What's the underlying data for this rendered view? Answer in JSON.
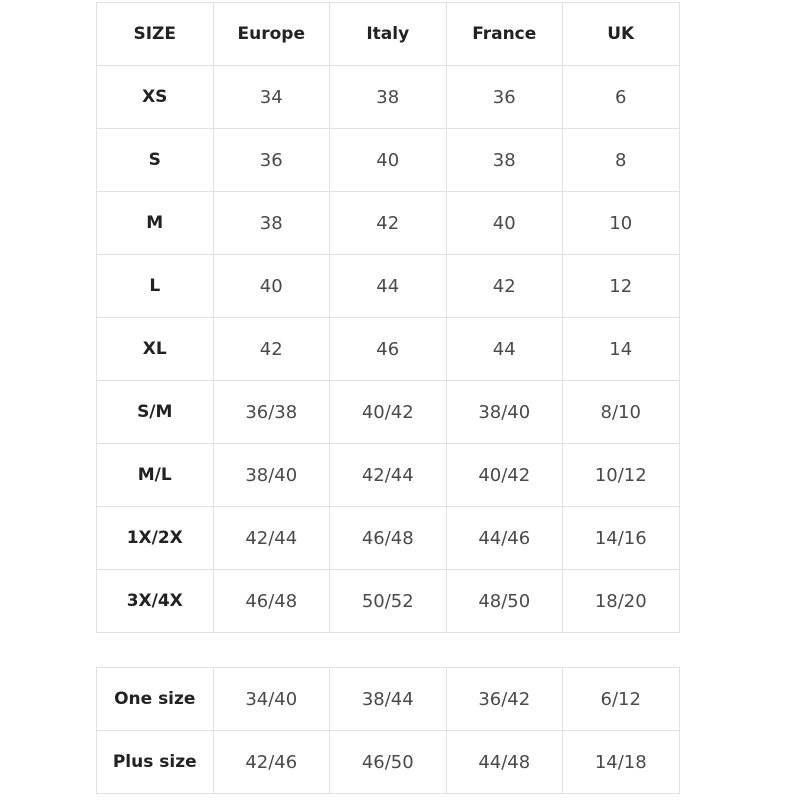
{
  "size_table": {
    "headers": [
      "SIZE",
      "Europe",
      "Italy",
      "France",
      "UK"
    ],
    "rows": [
      [
        "XS",
        "34",
        "38",
        "36",
        "6"
      ],
      [
        "S",
        "36",
        "40",
        "38",
        "8"
      ],
      [
        "M",
        "38",
        "42",
        "40",
        "10"
      ],
      [
        "L",
        "40",
        "44",
        "42",
        "12"
      ],
      [
        "XL",
        "42",
        "46",
        "44",
        "14"
      ],
      [
        "S/M",
        "36/38",
        "40/42",
        "38/40",
        "8/10"
      ],
      [
        "M/L",
        "38/40",
        "42/44",
        "40/42",
        "10/12"
      ],
      [
        "1X/2X",
        "42/44",
        "46/48",
        "44/46",
        "14/16"
      ],
      [
        "3X/4X",
        "46/48",
        "50/52",
        "48/50",
        "18/20"
      ]
    ]
  },
  "special_table": {
    "rows": [
      [
        "One size",
        "34/40",
        "38/44",
        "36/42",
        "6/12"
      ],
      [
        "Plus size",
        "42/46",
        "46/50",
        "44/48",
        "14/18"
      ]
    ]
  }
}
